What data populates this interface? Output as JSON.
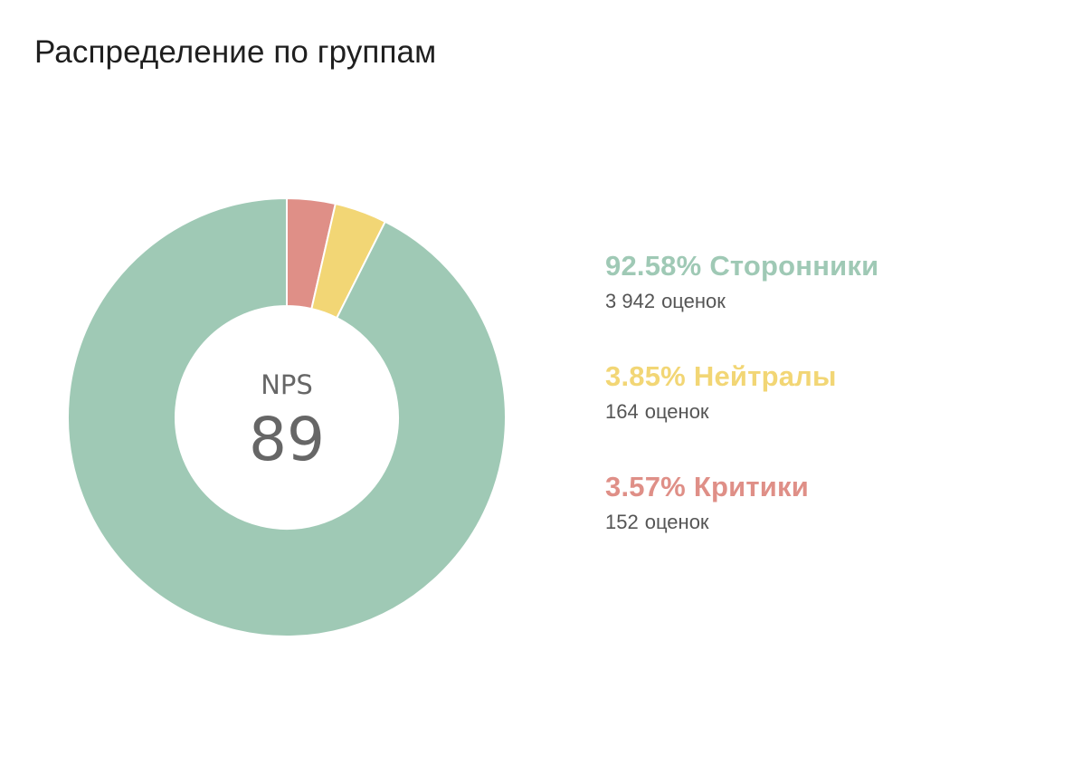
{
  "page": {
    "title": "Распределение по группам"
  },
  "center": {
    "label": "NPS",
    "value": "89"
  },
  "count_unit": "оценок",
  "colors": {
    "promoters": "#9fc9b5",
    "neutrals": "#f2d675",
    "detractors": "#df8f87",
    "title": "#1f1f1f",
    "count_text": "#555555",
    "center_text": "#666666"
  },
  "chart_data": {
    "type": "pie",
    "variant": "donut",
    "title": "",
    "legend_position": "right",
    "series": [
      {
        "name": "Сторонники",
        "percent_label": "92.58%",
        "value": 92.58,
        "count": "3 942",
        "color": "#9fc9b5"
      },
      {
        "name": "Нейтралы",
        "percent_label": "3.85%",
        "value": 3.85,
        "count": "164",
        "color": "#f2d675"
      },
      {
        "name": "Критики",
        "percent_label": "3.57%",
        "value": 3.57,
        "count": "152",
        "color": "#df8f87"
      }
    ]
  }
}
